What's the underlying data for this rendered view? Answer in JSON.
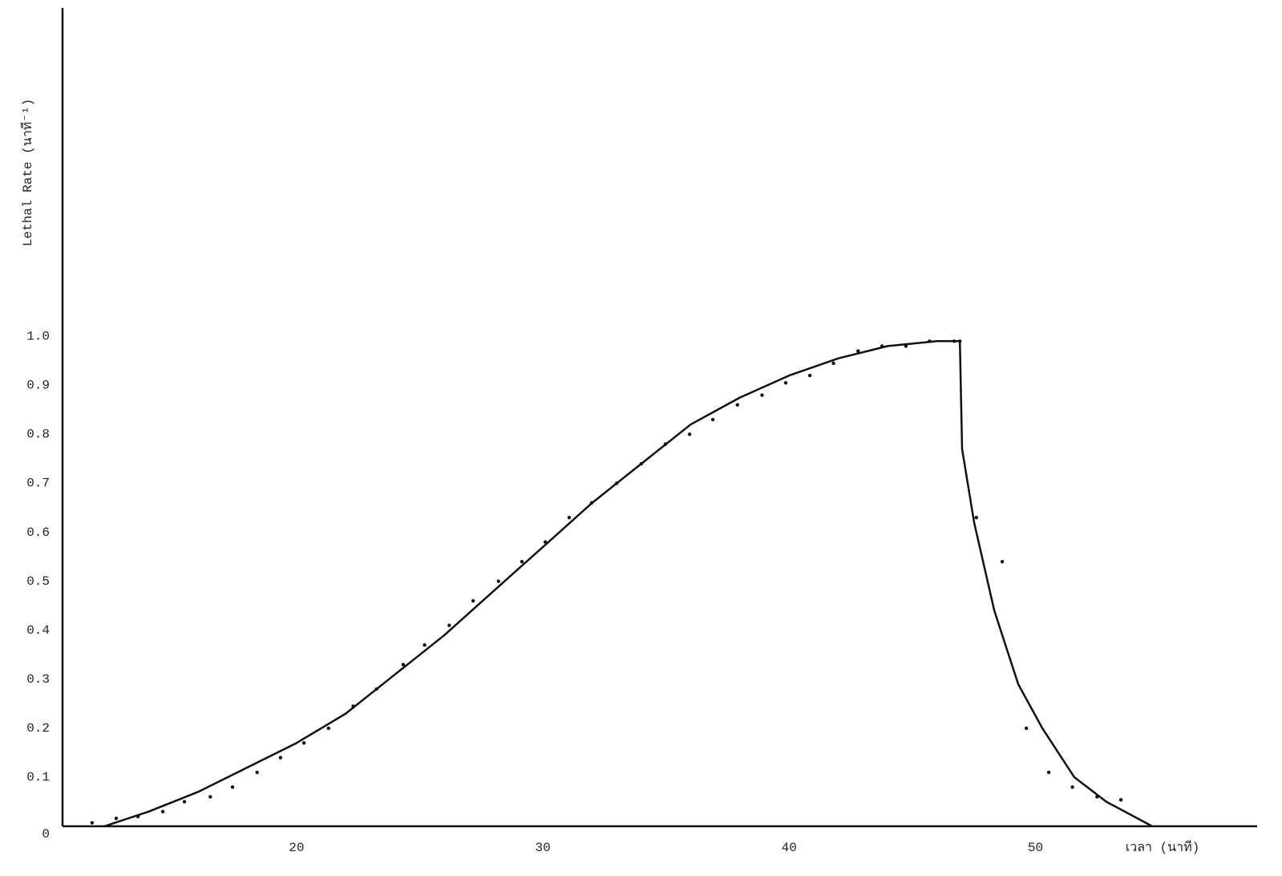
{
  "chart_data": {
    "type": "line",
    "x_label": "เวลา (นาที)",
    "y_label": "Lethal Rate (นาที⁻¹)",
    "xlim": [
      10.5,
      59
    ],
    "ylim": [
      0,
      1.67
    ],
    "xticks": [
      20,
      30,
      40,
      50
    ],
    "yticks": [
      0,
      0.1,
      0.2,
      0.3,
      0.4,
      0.5,
      0.6,
      0.7,
      0.8,
      0.9,
      {
        "value": 1,
        "label": "1.0"
      }
    ],
    "grid": false,
    "series": [
      {
        "color": "#111111",
        "mode": "markers",
        "x": [
          11.7,
          12.68,
          13.56,
          14.57,
          15.45,
          16.5,
          17.4,
          18.4,
          19.35,
          20.3,
          21.3,
          22.3,
          23.25,
          24.33,
          25.2,
          26.2,
          27.17,
          28.2,
          29.15,
          30.1,
          31.07,
          31.98,
          33.0,
          34.0,
          34.98,
          35.96,
          36.9,
          37.9,
          38.9,
          39.86,
          40.84,
          41.8,
          42.8,
          43.77,
          44.74,
          45.7,
          46.7,
          46.93,
          47.6,
          48.65,
          49.63,
          50.54,
          51.5,
          52.5,
          53.47
        ],
        "values": [
          0.007,
          0.016,
          0.02,
          0.03,
          0.05,
          0.06,
          0.08,
          0.11,
          0.14,
          0.17,
          0.2,
          0.245,
          0.28,
          0.33,
          0.37,
          0.41,
          0.46,
          0.5,
          0.54,
          0.58,
          0.63,
          0.66,
          0.7,
          0.74,
          0.78,
          0.8,
          0.83,
          0.86,
          0.88,
          0.905,
          0.92,
          0.945,
          0.97,
          0.98,
          0.98,
          0.99,
          0.99,
          0.99,
          0.63,
          0.54,
          0.2,
          0.11,
          0.08,
          0.06,
          0.054
        ]
      },
      {
        "color": "#111111",
        "mode": "line",
        "x": [
          12.2,
          14,
          16,
          18,
          20,
          22,
          24,
          26,
          28,
          30,
          32,
          34,
          36,
          38,
          40,
          42,
          44,
          46,
          46.93,
          47.02,
          47.51,
          48.33,
          49.3,
          50.28,
          51.58,
          52.88,
          54.74
        ],
        "values": [
          0,
          0.03,
          0.07,
          0.12,
          0.17,
          0.23,
          0.31,
          0.39,
          0.48,
          0.57,
          0.66,
          0.74,
          0.82,
          0.875,
          0.92,
          0.955,
          0.98,
          0.99,
          0.99,
          0.77,
          0.62,
          0.44,
          0.29,
          0.2,
          0.1,
          0.05,
          0
        ]
      }
    ]
  }
}
